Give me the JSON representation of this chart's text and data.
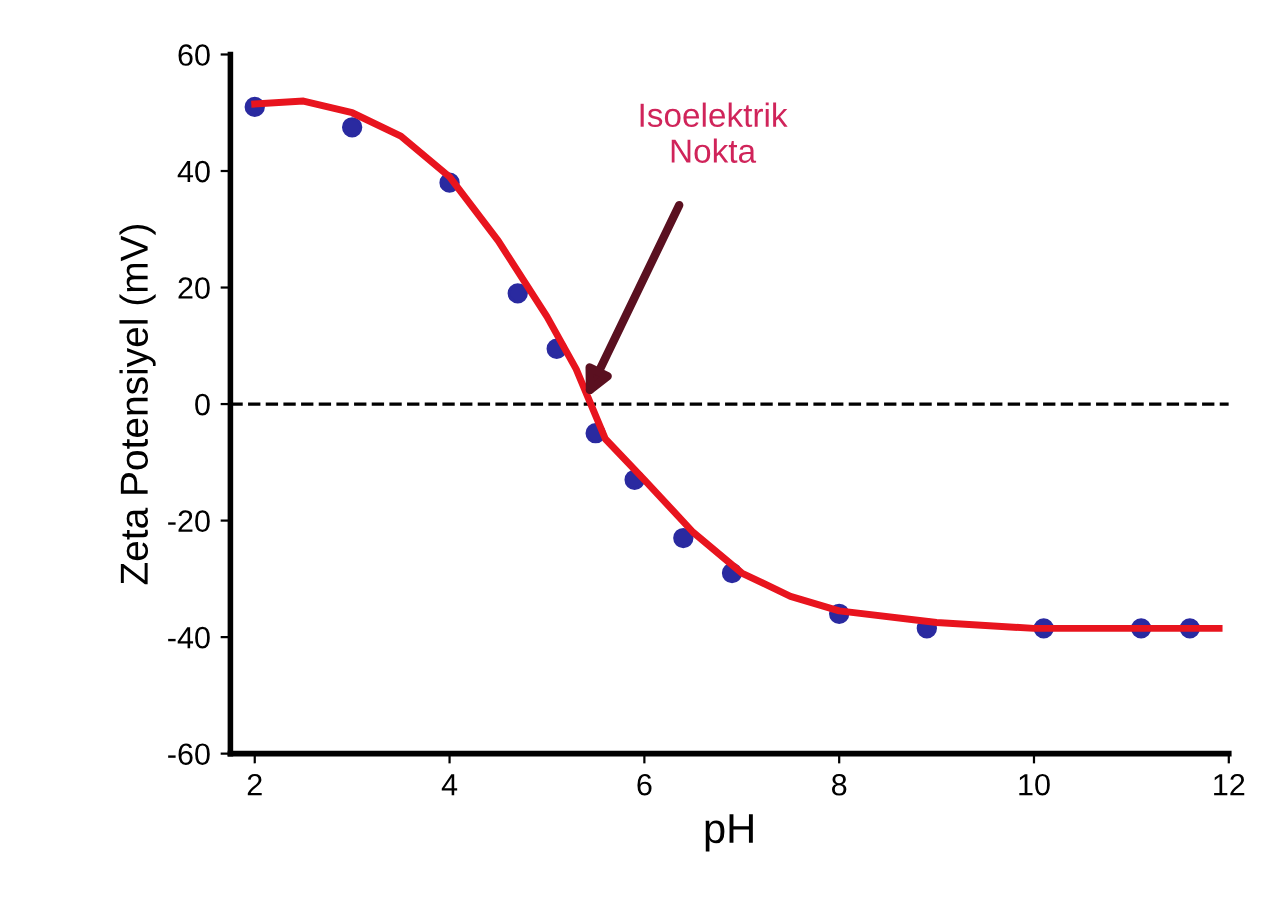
{
  "chart_data": {
    "type": "scatter",
    "xlabel": "pH",
    "ylabel": "Zeta Potensiyel (mV)",
    "xlim": [
      1.75,
      12
    ],
    "xticks": [
      2,
      4,
      6,
      8,
      10,
      12
    ],
    "ylim": [
      -60,
      60
    ],
    "yticks": [
      -60,
      -40,
      -20,
      0,
      20,
      40,
      60
    ],
    "grid": false,
    "series": [
      {
        "color": "#2a2aa0",
        "marker": "circle",
        "x": [
          2,
          3,
          4,
          4.7,
          5.1,
          5.5,
          5.9,
          6.4,
          6.9,
          8,
          8.9,
          10.1,
          11.1,
          11.6
        ],
        "values": [
          51,
          47.5,
          38,
          19,
          9.5,
          -5,
          -13,
          -23,
          -29,
          -36,
          -38.5,
          -38.5,
          -38.5,
          -38.5
        ]
      },
      {
        "type": "line",
        "color": "#e8141e",
        "marker": "none",
        "line_style": "solid",
        "x": [
          2,
          2.5,
          3,
          3.5,
          4,
          4.5,
          5,
          5.3,
          5.45,
          5.6,
          6,
          6.5,
          7,
          7.5,
          8,
          9,
          10,
          11,
          11.9
        ],
        "values": [
          51.5,
          52,
          50,
          46,
          39,
          28,
          15,
          6,
          0,
          -6,
          -13,
          -22,
          -29,
          -33,
          -35.5,
          -37.5,
          -38.5,
          -38.5,
          -38.5
        ]
      }
    ],
    "ref_lines": [
      {
        "axis": "y",
        "value": 0,
        "color": "#000000",
        "line_style": "dashed"
      }
    ],
    "annotations": [
      {
        "text": "Isoelektrik\nNokta",
        "x": 5.4,
        "y": 1
      }
    ]
  }
}
